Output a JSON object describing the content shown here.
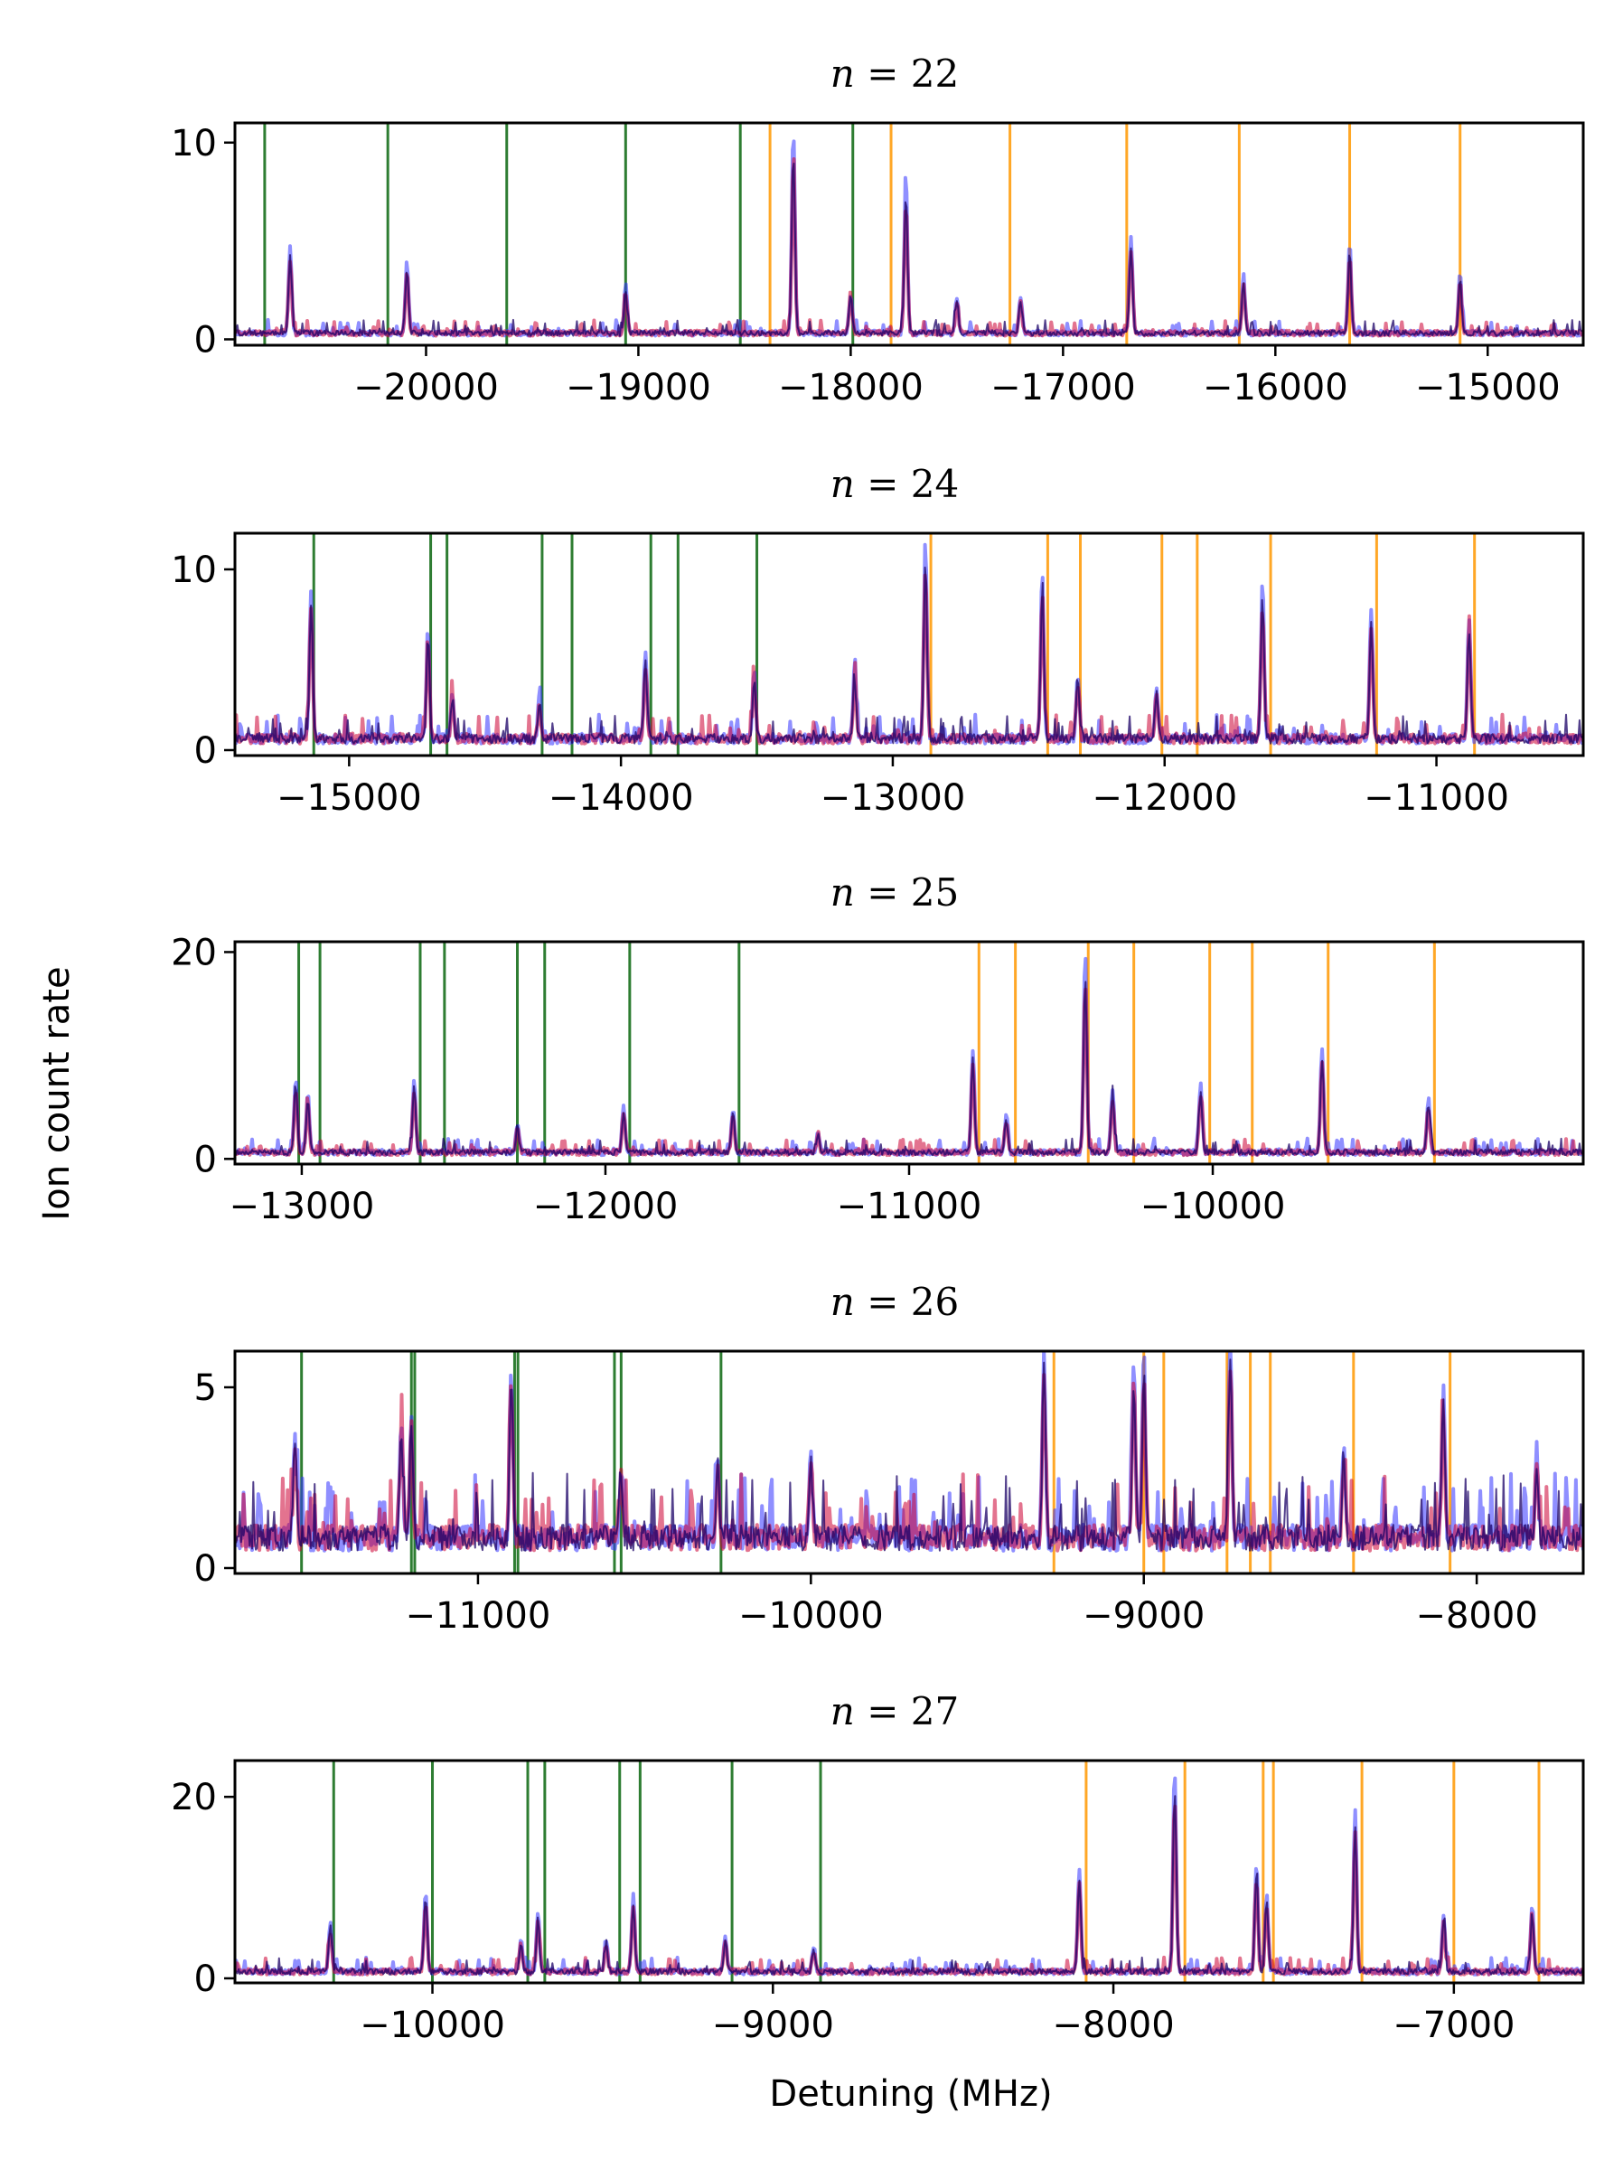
{
  "figure": {
    "ylabel": "Ion count rate",
    "xlabel": "Detuning (MHz)",
    "colors": {
      "green_marker": "#2e7d32",
      "orange_marker": "#ffa726",
      "blue_trace": "#3333ff",
      "red_trace": "#cc0033",
      "dark_trace": "#1a0066"
    }
  },
  "chart_data": [
    {
      "type": "line",
      "title": "n = 22",
      "xlim": [
        -20900,
        -14550
      ],
      "ylim": [
        -0.3,
        11
      ],
      "xticks": [
        -20000,
        -19000,
        -18000,
        -17000,
        -16000,
        -15000
      ],
      "yticks": [
        0,
        10
      ],
      "green_lines": [
        -20760,
        -20180,
        -19620,
        -19060,
        -18520,
        -17990
      ],
      "orange_lines": [
        -18380,
        -17810,
        -17250,
        -16700,
        -16170,
        -15650,
        -15130
      ],
      "peaks": [
        {
          "x": -20640,
          "y": 4.3
        },
        {
          "x": -20090,
          "y": 3.6
        },
        {
          "x": -19060,
          "y": 2.4
        },
        {
          "x": -18270,
          "y": 10.2
        },
        {
          "x": -18000,
          "y": 2.0
        },
        {
          "x": -17740,
          "y": 7.8
        },
        {
          "x": -17500,
          "y": 1.8
        },
        {
          "x": -17200,
          "y": 1.9
        },
        {
          "x": -16680,
          "y": 4.8
        },
        {
          "x": -16150,
          "y": 2.9
        },
        {
          "x": -15650,
          "y": 4.5
        },
        {
          "x": -15130,
          "y": 3.0
        }
      ],
      "baseline": 0.3
    },
    {
      "type": "line",
      "title": "n = 24",
      "xlim": [
        -15420,
        -10460
      ],
      "ylim": [
        -0.3,
        12
      ],
      "xticks": [
        -15000,
        -14000,
        -13000,
        -12000,
        -11000
      ],
      "yticks": [
        0,
        10
      ],
      "green_lines": [
        -15130,
        -14700,
        -14640,
        -14290,
        -14180,
        -13890,
        -13790,
        -13500
      ],
      "orange_lines": [
        -12860,
        -12430,
        -12310,
        -12010,
        -11880,
        -11610,
        -11220,
        -10860
      ],
      "peaks": [
        {
          "x": -15140,
          "y": 8.3
        },
        {
          "x": -14710,
          "y": 6.0
        },
        {
          "x": -14620,
          "y": 2.5
        },
        {
          "x": -14300,
          "y": 2.2
        },
        {
          "x": -13910,
          "y": 4.8
        },
        {
          "x": -13510,
          "y": 3.7
        },
        {
          "x": -13140,
          "y": 3.5
        },
        {
          "x": -12880,
          "y": 10.9
        },
        {
          "x": -12450,
          "y": 9.0
        },
        {
          "x": -12320,
          "y": 3.6
        },
        {
          "x": -12030,
          "y": 2.8
        },
        {
          "x": -11640,
          "y": 8.6
        },
        {
          "x": -11240,
          "y": 7.1
        },
        {
          "x": -10880,
          "y": 6.6
        }
      ],
      "baseline": 0.6
    },
    {
      "type": "line",
      "title": "n = 25",
      "xlim": [
        -13220,
        -8780
      ],
      "ylim": [
        -0.5,
        21
      ],
      "xticks": [
        -13000,
        -12000,
        -11000,
        -10000
      ],
      "yticks": [
        0,
        20
      ],
      "green_lines": [
        -13010,
        -12940,
        -12610,
        -12530,
        -12290,
        -12200,
        -11920,
        -11560
      ],
      "orange_lines": [
        -10770,
        -10650,
        -10410,
        -10260,
        -10010,
        -9870,
        -9620,
        -9270
      ],
      "peaks": [
        {
          "x": -13020,
          "y": 7.2
        },
        {
          "x": -12980,
          "y": 5.6
        },
        {
          "x": -12630,
          "y": 7.0
        },
        {
          "x": -12290,
          "y": 2.8
        },
        {
          "x": -11940,
          "y": 4.5
        },
        {
          "x": -11580,
          "y": 4.2
        },
        {
          "x": -11300,
          "y": 1.8
        },
        {
          "x": -10790,
          "y": 10.0
        },
        {
          "x": -10680,
          "y": 3.6
        },
        {
          "x": -10420,
          "y": 19.0
        },
        {
          "x": -10330,
          "y": 6.0
        },
        {
          "x": -10040,
          "y": 6.5
        },
        {
          "x": -9640,
          "y": 10.0
        },
        {
          "x": -9290,
          "y": 5.2
        }
      ],
      "baseline": 0.6
    },
    {
      "type": "line",
      "title": "n = 26",
      "xlim": [
        -11730,
        -7680
      ],
      "ylim": [
        -0.15,
        6
      ],
      "xticks": [
        -11000,
        -10000,
        -9000,
        -8000
      ],
      "yticks": [
        0,
        5
      ],
      "green_lines": [
        -11530,
        -11200,
        -11190,
        -10890,
        -10880,
        -10590,
        -10570,
        -10270
      ],
      "orange_lines": [
        -9270,
        -9000,
        -8940,
        -8750,
        -8680,
        -8620,
        -8370,
        -8080
      ],
      "peaks": [
        {
          "x": -11550,
          "y": 2.9
        },
        {
          "x": -11230,
          "y": 3.4
        },
        {
          "x": -11200,
          "y": 3.5
        },
        {
          "x": -10900,
          "y": 4.8
        },
        {
          "x": -10570,
          "y": 1.8
        },
        {
          "x": -10280,
          "y": 2.1
        },
        {
          "x": -10000,
          "y": 2.6
        },
        {
          "x": -9300,
          "y": 5.1
        },
        {
          "x": -9030,
          "y": 5.0
        },
        {
          "x": -9000,
          "y": 5.3
        },
        {
          "x": -8740,
          "y": 5.6
        },
        {
          "x": -8400,
          "y": 2.4
        },
        {
          "x": -8100,
          "y": 4.0
        },
        {
          "x": -7820,
          "y": 2.4
        }
      ],
      "baseline": 0.8
    },
    {
      "type": "line",
      "title": "n = 27",
      "xlim": [
        -10580,
        -6620
      ],
      "ylim": [
        -0.5,
        24
      ],
      "xticks": [
        -10000,
        -9000,
        -8000,
        -7000
      ],
      "yticks": [
        0,
        20
      ],
      "green_lines": [
        -10290,
        -10000,
        -9720,
        -9670,
        -9450,
        -9390,
        -9120,
        -8860
      ],
      "orange_lines": [
        -8080,
        -7790,
        -7560,
        -7530,
        -7270,
        -7000,
        -6750
      ],
      "peaks": [
        {
          "x": -10300,
          "y": 5.2
        },
        {
          "x": -10020,
          "y": 9.0
        },
        {
          "x": -9740,
          "y": 3.6
        },
        {
          "x": -9690,
          "y": 6.4
        },
        {
          "x": -9490,
          "y": 3.6
        },
        {
          "x": -9410,
          "y": 8.4
        },
        {
          "x": -9140,
          "y": 3.8
        },
        {
          "x": -8880,
          "y": 2.6
        },
        {
          "x": -8100,
          "y": 11.5
        },
        {
          "x": -7820,
          "y": 22.0
        },
        {
          "x": -7580,
          "y": 12.0
        },
        {
          "x": -7550,
          "y": 8.5
        },
        {
          "x": -7290,
          "y": 18.0
        },
        {
          "x": -7030,
          "y": 6.3
        },
        {
          "x": -6770,
          "y": 7.0
        }
      ],
      "baseline": 0.7
    }
  ]
}
